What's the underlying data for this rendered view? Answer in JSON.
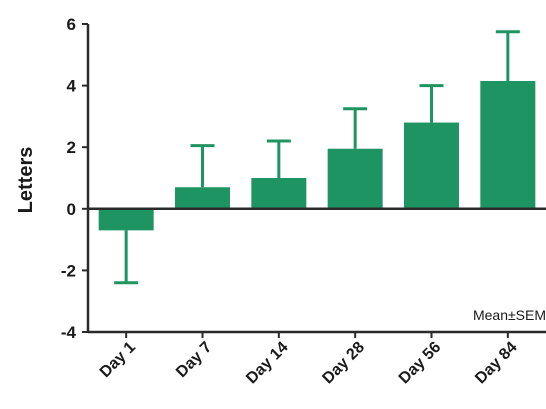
{
  "chart_data": {
    "type": "bar",
    "categories": [
      "Day 1",
      "Day 7",
      "Day 14",
      "Day 28",
      "Day 56",
      "Day 84"
    ],
    "values": [
      -0.7,
      0.7,
      1.0,
      1.95,
      2.8,
      4.15
    ],
    "error_upper": [
      -2.4,
      2.05,
      2.2,
      3.25,
      4.0,
      5.75
    ],
    "ylabel": "Letters",
    "ylim": [
      -4,
      6
    ],
    "yticks": [
      6,
      4,
      2,
      0,
      -2,
      -4
    ],
    "ytick_labels": [
      "6",
      "4",
      "2",
      "0",
      "-2",
      "-4"
    ],
    "annotation": "Mean±SEM",
    "bar_color": "#1f9463",
    "grid": false
  }
}
